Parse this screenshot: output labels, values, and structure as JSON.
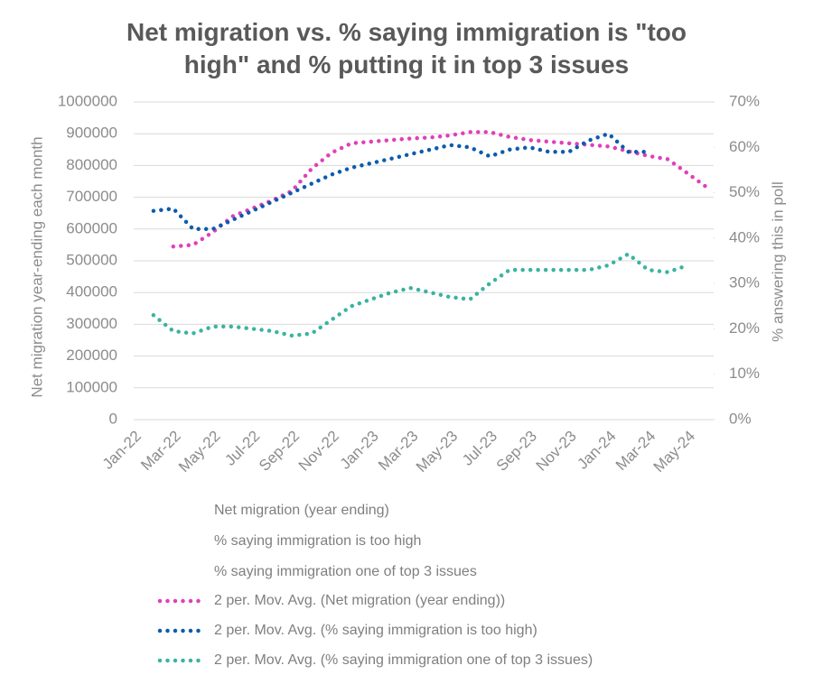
{
  "chart_data": {
    "type": "line",
    "title": "Net migration vs. % saying immigration is \"too high\" and % putting it in top 3 issues",
    "y_label": "Net migration year-ending each month",
    "y2_label": "% answering this in poll",
    "categories": [
      "Jan-22",
      null,
      "Mar-22",
      null,
      "May-22",
      null,
      "Jul-22",
      null,
      "Sep-22",
      null,
      "Nov-22",
      null,
      "Jan-23",
      null,
      "Mar-23",
      null,
      "May-23",
      null,
      "Jul-23",
      null,
      "Sep-23",
      null,
      "Nov-23",
      null,
      "Jan-24",
      null,
      "Mar-24",
      null,
      "May-24",
      null
    ],
    "ylim": [
      0,
      1000000
    ],
    "yticks": [
      0,
      100000,
      200000,
      300000,
      400000,
      500000,
      600000,
      700000,
      800000,
      900000,
      1000000
    ],
    "y2lim": [
      0,
      70
    ],
    "y2ticks": [
      {
        "value": 0,
        "label": "0%"
      },
      {
        "value": 10,
        "label": "10%"
      },
      {
        "value": 20,
        "label": "20%"
      },
      {
        "value": 30,
        "label": "30%"
      },
      {
        "value": 40,
        "label": "40%"
      },
      {
        "value": 50,
        "label": "50%"
      },
      {
        "value": 60,
        "label": "60%"
      },
      {
        "value": 70,
        "label": "70%"
      }
    ],
    "grid": true,
    "legend_entries": [
      "Net migration (year ending)",
      "% saying immigration is too high",
      "% saying immigration one of top 3 issues"
    ],
    "series": [
      {
        "name": "2 per. Mov. Avg. (Net migration (year ending))",
        "color": "#e040b8",
        "values": [
          null,
          null,
          545000,
          550000,
          590000,
          640000,
          665000,
          690000,
          720000,
          790000,
          840000,
          870000,
          875000,
          880000,
          885000,
          888000,
          895000,
          905000,
          905000,
          890000,
          880000,
          875000,
          870000,
          865000,
          860000,
          845000,
          830000,
          820000,
          775000,
          730000
        ]
      },
      {
        "name": "2 per. Mov. Avg. (% saying immigration is too high)",
        "color": "#0b5cad",
        "axis": "y2",
        "values": [
          null,
          46,
          46.5,
          42,
          42,
          44,
          46,
          48,
          50,
          52,
          54,
          55.5,
          56.5,
          57.5,
          58.5,
          59.5,
          60.5,
          60,
          58,
          59.5,
          60,
          59,
          59,
          61.5,
          63,
          59,
          59,
          null,
          null,
          null
        ]
      },
      {
        "name": "2 per. Mov. Avg. (% saying immigration one of top 3 issues)",
        "color": "#3bb3a0",
        "axis": "y2",
        "values": [
          null,
          23,
          19.5,
          19,
          20.5,
          20.5,
          20,
          19.5,
          18.5,
          19,
          22,
          25,
          26.5,
          28,
          29,
          28,
          27,
          26.5,
          30,
          33,
          33,
          33,
          33,
          33,
          34,
          36.5,
          33,
          32.5,
          34,
          null
        ]
      }
    ]
  }
}
